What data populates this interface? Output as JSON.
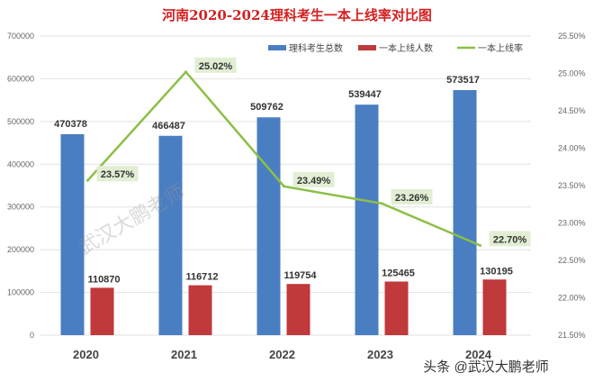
{
  "chart_data": {
    "type": "bar",
    "title": "河南2020-2024理科考生一本上线率对比图",
    "categories": [
      "2020",
      "2021",
      "2022",
      "2023",
      "2024"
    ],
    "series": [
      {
        "name": "理科考生总数",
        "type": "bar",
        "axis": "left",
        "color": "#4a7ec2",
        "values": [
          470378,
          466487,
          509762,
          539447,
          573517
        ]
      },
      {
        "name": "一本上线人数",
        "type": "bar",
        "axis": "left",
        "color": "#c0393b",
        "values": [
          110870,
          116712,
          119754,
          125465,
          130195
        ]
      },
      {
        "name": "一本上线率",
        "type": "line",
        "axis": "right",
        "color": "#8cbf46",
        "values": [
          23.57,
          25.02,
          23.49,
          23.26,
          22.7
        ],
        "labels": [
          "23.57%",
          "25.02%",
          "23.49%",
          "23.26%",
          "22.70%"
        ]
      }
    ],
    "ylim": [
      0,
      700000
    ],
    "yticks": [
      "0",
      "100000",
      "200000",
      "300000",
      "400000",
      "500000",
      "600000",
      "700000"
    ],
    "y2lim": [
      21.5,
      25.5
    ],
    "y2ticks": [
      "21.50%",
      "22.00%",
      "22.50%",
      "23.00%",
      "23.50%",
      "24.00%",
      "24.50%",
      "25.00%",
      "25.50%"
    ],
    "legend": "top-right",
    "grid": true
  },
  "watermark": "头条 @武汉大鹏老师",
  "watermark_center": "武汉大鹏老师"
}
